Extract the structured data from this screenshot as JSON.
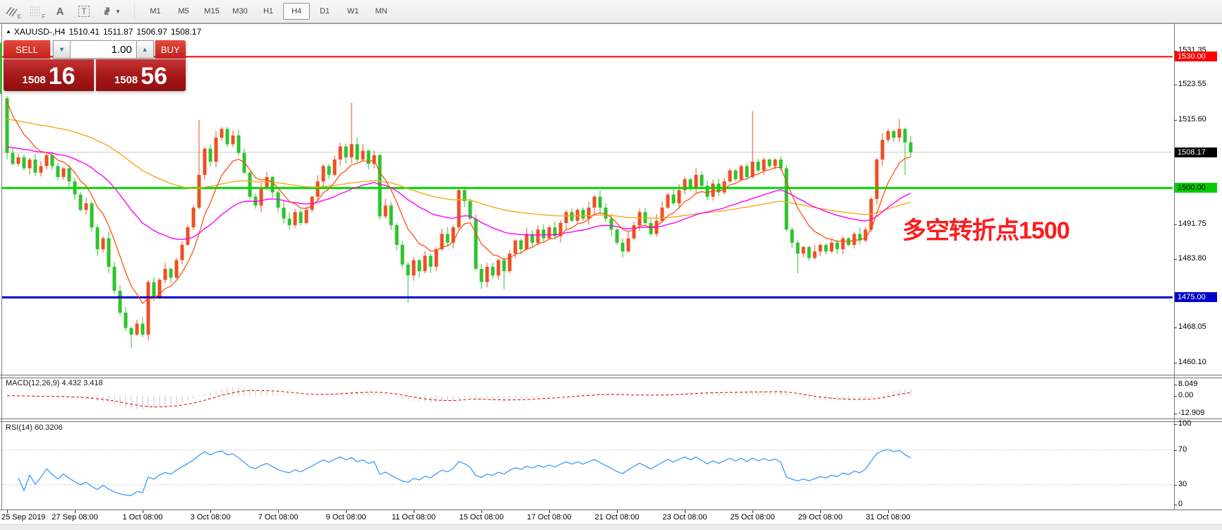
{
  "toolbar": {
    "tools": [
      {
        "name": "crosshatch-draw-icon",
        "badge": "E"
      },
      {
        "name": "fibo-grid-icon",
        "badge": "F"
      },
      {
        "name": "text-label-icon",
        "glyph": "A"
      },
      {
        "name": "text-box-icon",
        "glyph": "T"
      },
      {
        "name": "cursor-arrows-icon",
        "badge": ""
      }
    ],
    "timeframes": [
      "M1",
      "M5",
      "M15",
      "M30",
      "H1",
      "H4",
      "D1",
      "W1",
      "MN"
    ],
    "active_timeframe": "H4"
  },
  "chart_header": {
    "collapse_icon": "▲",
    "symbol": "XAUUSD-,H4",
    "open": "1510.41",
    "high": "1511.87",
    "low": "1506.97",
    "close": "1508.17"
  },
  "trade_panel": {
    "sell_label": "SELL",
    "buy_label": "BUY",
    "volume": "1.00",
    "spin_down": "▼",
    "spin_up": "▲",
    "bid_small": "1508",
    "bid_big": "16",
    "ask_small": "1508",
    "ask_big": "56"
  },
  "annotation": {
    "text": "多空转折点1500",
    "color": "#ff1c1c"
  },
  "macd_panel": {
    "label": "MACD(12,26,9)",
    "value_main": "4.432",
    "value_signal": "3.418",
    "axis_ticks": [
      {
        "label": "8.049",
        "v": 8.049
      },
      {
        "label": "0.00",
        "v": 0.0
      },
      {
        "label": "-12.909",
        "v": -12.909
      }
    ]
  },
  "rsi_panel": {
    "label": "RSI(14)",
    "value": "60.3206",
    "axis_ticks": [
      {
        "label": "100",
        "v": 100
      },
      {
        "label": "70",
        "v": 70
      },
      {
        "label": "30",
        "v": 30
      },
      {
        "label": "0",
        "v": 0
      }
    ]
  },
  "chart_data": {
    "type": "candlestick",
    "symbol": "XAUUSD",
    "period": "H4",
    "style": {
      "bull": "#ef4e22",
      "bear": "#2dc32b",
      "note": "chinese convention: red = up, green = down"
    },
    "ylim": [
      1457.3,
      1537.6
    ],
    "price_ticks": [
      {
        "label": "1531.35",
        "price": 1531.35
      },
      {
        "label": "1523.55",
        "price": 1523.55
      },
      {
        "label": "1515.60",
        "price": 1515.6
      },
      {
        "label": "1491.75",
        "price": 1491.75
      },
      {
        "label": "1483.80",
        "price": 1483.8
      },
      {
        "label": "1468.05",
        "price": 1468.05
      },
      {
        "label": "1460.10",
        "price": 1460.1
      }
    ],
    "price_boxes": [
      {
        "label": "1530.00",
        "price": 1530.0,
        "bg": "#ff0000",
        "fg": "#ffffff"
      },
      {
        "label": "1508.17",
        "price": 1508.17,
        "bg": "#000000",
        "fg": "#ffffff"
      },
      {
        "label": "1500.00",
        "price": 1500.0,
        "bg": "#00cc00",
        "fg": "#000000"
      },
      {
        "label": "1475.00",
        "price": 1475.0,
        "bg": "#0000cc",
        "fg": "#ffffff"
      }
    ],
    "hlines": [
      {
        "price": 1530.0,
        "color": "#ff0000",
        "width": 2
      },
      {
        "price": 1500.0,
        "color": "#00dd00",
        "width": 3
      },
      {
        "price": 1475.0,
        "color": "#0000cc",
        "width": 3
      }
    ],
    "current_price_line": {
      "price": 1508.17,
      "color": "#c8c8c8"
    },
    "time_labels": [
      "25 Sep 2019",
      "27 Sep 08:00",
      "1 Oct 08:00",
      "3 Oct 08:00",
      "7 Oct 08:00",
      "9 Oct 08:00",
      "11 Oct 08:00",
      "15 Oct 08:00",
      "17 Oct 08:00",
      "21 Oct 08:00",
      "23 Oct 08:00",
      "25 Oct 08:00",
      "29 Oct 08:00",
      "31 Oct 08:00"
    ],
    "candles_per_label": 12,
    "closes": [
      1508.0,
      1505.5,
      1507.0,
      1504.5,
      1506.5,
      1503.5,
      1505.0,
      1507.5,
      1505.0,
      1502.5,
      1504.5,
      1501.5,
      1498.5,
      1495.0,
      1496.5,
      1491.0,
      1486.0,
      1488.5,
      1482.0,
      1476.5,
      1471.5,
      1468.0,
      1466.5,
      1469.0,
      1466.5,
      1478.5,
      1475.0,
      1479.0,
      1481.5,
      1479.5,
      1483.5,
      1487.0,
      1491.0,
      1495.5,
      1503.0,
      1509.0,
      1506.0,
      1511.5,
      1513.5,
      1510.0,
      1512.0,
      1508.0,
      1503.5,
      1498.0,
      1496.0,
      1500.0,
      1502.5,
      1499.0,
      1495.5,
      1493.0,
      1491.5,
      1494.5,
      1492.0,
      1495.0,
      1498.0,
      1501.5,
      1505.0,
      1503.0,
      1506.5,
      1509.5,
      1507.0,
      1510.0,
      1506.5,
      1508.5,
      1505.5,
      1507.5,
      1493.5,
      1496.0,
      1491.5,
      1487.0,
      1482.5,
      1480.0,
      1483.5,
      1481.0,
      1484.5,
      1482.0,
      1486.0,
      1489.5,
      1487.5,
      1491.0,
      1499.5,
      1497.0,
      1493.0,
      1481.5,
      1478.5,
      1482.0,
      1480.0,
      1483.5,
      1481.0,
      1485.0,
      1488.0,
      1486.0,
      1489.5,
      1487.5,
      1490.5,
      1488.5,
      1491.0,
      1489.0,
      1492.0,
      1494.5,
      1492.5,
      1495.0,
      1493.0,
      1495.5,
      1498.0,
      1495.5,
      1493.0,
      1490.5,
      1487.5,
      1485.5,
      1488.5,
      1491.5,
      1494.5,
      1492.0,
      1489.5,
      1492.5,
      1495.5,
      1498.5,
      1496.5,
      1499.5,
      1502.0,
      1500.0,
      1503.0,
      1500.5,
      1498.0,
      1501.0,
      1499.0,
      1501.5,
      1504.0,
      1502.0,
      1505.0,
      1502.5,
      1506.0,
      1504.0,
      1506.5,
      1505.0,
      1506.5,
      1504.5,
      1490.5,
      1487.5,
      1485.0,
      1486.5,
      1484.0,
      1485.5,
      1487.0,
      1485.5,
      1487.5,
      1486.0,
      1488.5,
      1487.0,
      1489.5,
      1488.0,
      1490.5,
      1497.5,
      1506.5,
      1511.0,
      1513.0,
      1511.5,
      1513.5,
      1510.4,
      1508.17
    ],
    "overrides": [
      {
        "i": 0,
        "o": 1520.5,
        "h": 1521.0,
        "l": 1506.5
      },
      {
        "i": 22,
        "l": 1463.5
      },
      {
        "i": 34,
        "h": 1515.5
      },
      {
        "i": 61,
        "h": 1519.5
      },
      {
        "i": 71,
        "l": 1473.8
      },
      {
        "i": 88,
        "l": 1476.8
      },
      {
        "i": 132,
        "h": 1517.6
      },
      {
        "i": 140,
        "l": 1480.5
      },
      {
        "i": 158,
        "h": 1515.8
      },
      {
        "i": 159,
        "l": 1502.9
      },
      {
        "i": 160,
        "o": 1510.41,
        "h": 1511.87,
        "l": 1506.97,
        "c": 1508.17
      }
    ],
    "moving_averages": [
      {
        "name": "slow-ma",
        "period": 80,
        "init": 1516.0,
        "color": "#f5a81e",
        "width": 1.4
      },
      {
        "name": "medium-ma",
        "period": 34,
        "init": 1509.5,
        "color": "#ff00ff",
        "width": 1.4
      },
      {
        "name": "fast-ma",
        "period": 8,
        "init": 1523.0,
        "color": "#ff4500",
        "width": 1.2
      }
    ],
    "macd": {
      "fast": 12,
      "slow": 26,
      "signal": 9,
      "hist_color": "#c4c4c4",
      "signal_color": "#dd0000",
      "ylim": [
        -16.5,
        13.1
      ]
    },
    "rsi": {
      "period": 14,
      "color": "#3e9bff",
      "levels": [
        70,
        30
      ],
      "ylim": [
        0,
        103
      ]
    }
  }
}
